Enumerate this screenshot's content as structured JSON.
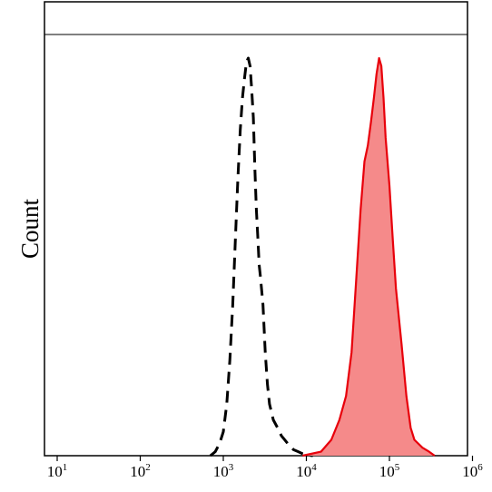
{
  "chart_data": {
    "type": "area",
    "title": "",
    "xlabel": "",
    "ylabel": "Count",
    "x_scale": "log",
    "xlim": [
      10,
      1000000
    ],
    "ylim": [
      0,
      1.08
    ],
    "x_ticks": [
      {
        "base": "10",
        "exp": "1",
        "value": 10
      },
      {
        "base": "10",
        "exp": "2",
        "value": 100
      },
      {
        "base": "10",
        "exp": "3",
        "value": 1000
      },
      {
        "base": "10",
        "exp": "4",
        "value": 10000
      },
      {
        "base": "10",
        "exp": "5",
        "value": 100000
      },
      {
        "base": "10",
        "exp": "6",
        "value": 1000000
      }
    ],
    "grid": false,
    "legend": "none",
    "series": [
      {
        "style": "dashed-line",
        "color": "#000000",
        "x": [
          700,
          800,
          900,
          1000,
          1100,
          1200,
          1300,
          1400,
          1500,
          1600,
          1700,
          1800,
          1900,
          2000,
          2100,
          2200,
          2300,
          2400,
          2500,
          2600,
          2700,
          2800,
          3000,
          3200,
          3400,
          3600,
          4000,
          4500,
          5000,
          6000,
          7000,
          8000,
          9000,
          10000,
          12000
        ],
        "y": [
          0.0,
          0.01,
          0.03,
          0.06,
          0.13,
          0.24,
          0.38,
          0.55,
          0.7,
          0.82,
          0.9,
          0.95,
          0.99,
          1.0,
          0.98,
          0.92,
          0.85,
          0.72,
          0.62,
          0.55,
          0.48,
          0.45,
          0.38,
          0.26,
          0.18,
          0.13,
          0.09,
          0.07,
          0.05,
          0.03,
          0.015,
          0.01,
          0.005,
          0.002,
          0.0
        ]
      },
      {
        "style": "filled-area",
        "color": "#e8000b",
        "fill": "#f58a8a",
        "x": [
          9000,
          15000,
          20000,
          25000,
          30000,
          35000,
          40000,
          45000,
          50000,
          55000,
          60000,
          65000,
          70000,
          75000,
          80000,
          85000,
          90000,
          100000,
          110000,
          120000,
          140000,
          160000,
          180000,
          200000,
          250000,
          300000,
          350000
        ],
        "y": [
          0.0,
          0.01,
          0.04,
          0.09,
          0.15,
          0.26,
          0.45,
          0.62,
          0.74,
          0.78,
          0.84,
          0.9,
          0.96,
          1.0,
          0.98,
          0.9,
          0.8,
          0.68,
          0.54,
          0.42,
          0.28,
          0.15,
          0.07,
          0.04,
          0.02,
          0.01,
          0.0
        ]
      }
    ]
  }
}
